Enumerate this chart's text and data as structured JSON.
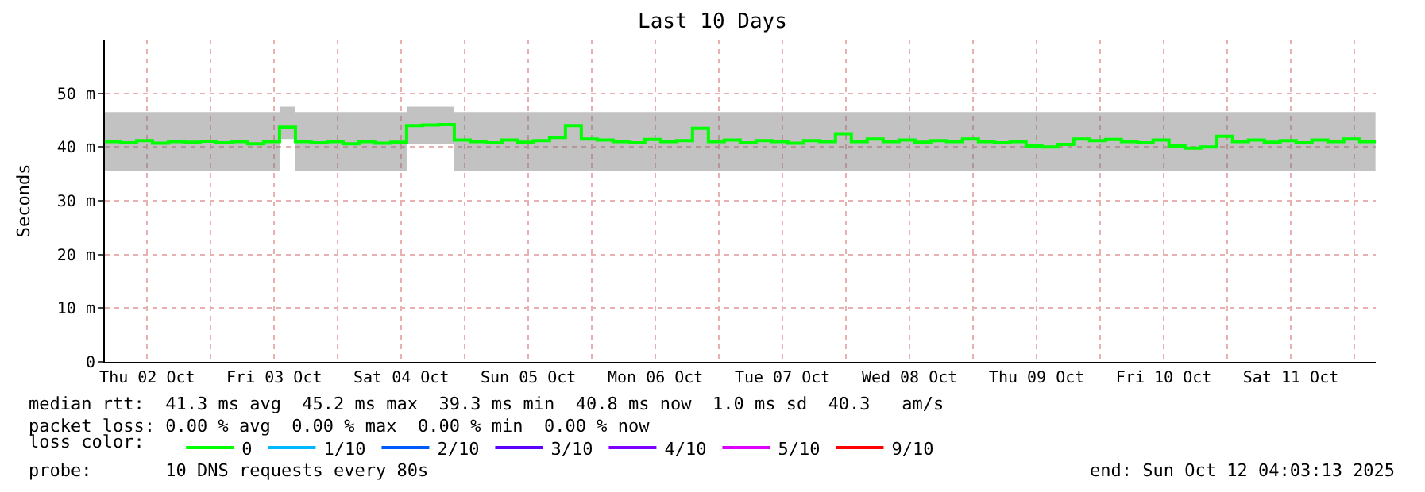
{
  "chart_data": {
    "type": "step",
    "title": "Last 10 Days",
    "ylabel": "Seconds",
    "legend_title": "loss color:",
    "x": [
      "2025-10-02T04:00",
      "2025-10-02T07:00",
      "2025-10-02T10:00",
      "2025-10-02T13:00",
      "2025-10-02T16:00",
      "2025-10-02T19:00",
      "2025-10-02T22:00",
      "2025-10-03T01:00",
      "2025-10-03T04:00",
      "2025-10-03T07:00",
      "2025-10-03T10:00",
      "2025-10-03T13:00",
      "2025-10-03T16:00",
      "2025-10-03T19:00",
      "2025-10-03T22:00",
      "2025-10-04T01:00",
      "2025-10-04T04:00",
      "2025-10-04T07:00",
      "2025-10-04T10:00",
      "2025-10-04T13:00",
      "2025-10-04T16:00",
      "2025-10-04T19:00",
      "2025-10-04T22:00",
      "2025-10-05T01:00",
      "2025-10-05T04:00",
      "2025-10-05T07:00",
      "2025-10-05T10:00",
      "2025-10-05T13:00",
      "2025-10-05T16:00",
      "2025-10-05T19:00",
      "2025-10-05T22:00",
      "2025-10-06T01:00",
      "2025-10-06T04:00",
      "2025-10-06T07:00",
      "2025-10-06T10:00",
      "2025-10-06T13:00",
      "2025-10-06T16:00",
      "2025-10-06T19:00",
      "2025-10-06T22:00",
      "2025-10-07T01:00",
      "2025-10-07T04:00",
      "2025-10-07T07:00",
      "2025-10-07T10:00",
      "2025-10-07T13:00",
      "2025-10-07T16:00",
      "2025-10-07T19:00",
      "2025-10-07T22:00",
      "2025-10-08T01:00",
      "2025-10-08T04:00",
      "2025-10-08T07:00",
      "2025-10-08T10:00",
      "2025-10-08T13:00",
      "2025-10-08T16:00",
      "2025-10-08T19:00",
      "2025-10-08T22:00",
      "2025-10-09T01:00",
      "2025-10-09T04:00",
      "2025-10-09T07:00",
      "2025-10-09T10:00",
      "2025-10-09T13:00",
      "2025-10-09T16:00",
      "2025-10-09T19:00",
      "2025-10-09T22:00",
      "2025-10-10T01:00",
      "2025-10-10T04:00",
      "2025-10-10T07:00",
      "2025-10-10T10:00",
      "2025-10-10T13:00",
      "2025-10-10T16:00",
      "2025-10-10T19:00",
      "2025-10-10T22:00",
      "2025-10-11T01:00",
      "2025-10-11T04:00",
      "2025-10-11T07:00",
      "2025-10-11T10:00",
      "2025-10-11T13:00",
      "2025-10-11T16:00",
      "2025-10-11T19:00",
      "2025-10-11T22:00",
      "2025-10-12T01:00",
      "2025-10-12T04:00"
    ],
    "series": [
      {
        "name": "0",
        "color": "#00ff00",
        "values": [
          41.0,
          40.8,
          41.2,
          40.7,
          41.0,
          40.9,
          41.1,
          40.8,
          41.0,
          40.6,
          41.0,
          43.7,
          41.0,
          40.8,
          41.0,
          40.6,
          41.0,
          40.7,
          40.9,
          44.0,
          44.1,
          44.2,
          41.3,
          41.0,
          40.8,
          41.3,
          40.9,
          41.2,
          41.8,
          44.0,
          41.5,
          41.3,
          41.0,
          40.8,
          41.4,
          41.0,
          41.2,
          43.5,
          41.0,
          41.3,
          40.8,
          41.2,
          41.0,
          40.7,
          41.2,
          41.0,
          42.5,
          41.0,
          41.5,
          41.0,
          41.3,
          40.9,
          41.2,
          41.0,
          41.5,
          41.0,
          40.8,
          41.0,
          40.2,
          40.0,
          40.5,
          41.5,
          41.2,
          41.4,
          41.0,
          40.8,
          41.3,
          40.2,
          39.8,
          40.0,
          42.0,
          41.0,
          41.3,
          40.9,
          41.2,
          40.8,
          41.3,
          41.0,
          41.5,
          41.0,
          41.3
        ],
        "lower": [
          35.5,
          35.5,
          35.5,
          35.5,
          35.5,
          35.5,
          35.5,
          35.5,
          35.5,
          35.5,
          35.5,
          41.5,
          35.5,
          35.5,
          35.5,
          35.5,
          35.5,
          35.5,
          35.5,
          40.5,
          40.5,
          40.5,
          35.5,
          35.5,
          35.5,
          35.5,
          35.5,
          35.5,
          35.5,
          35.5,
          35.5,
          35.5,
          35.5,
          35.5,
          35.5,
          35.5,
          35.5,
          35.5,
          35.5,
          35.5,
          35.5,
          35.5,
          35.5,
          35.5,
          35.5,
          35.5,
          35.5,
          35.5,
          35.5,
          35.5,
          35.5,
          35.5,
          35.5,
          35.5,
          35.5,
          35.5,
          35.5,
          35.5,
          35.5,
          35.5,
          35.5,
          35.5,
          35.5,
          35.5,
          35.5,
          35.5,
          35.5,
          35.5,
          35.5,
          35.5,
          35.5,
          35.5,
          35.5,
          35.5,
          35.5,
          35.5,
          35.5,
          35.5,
          35.5,
          35.5,
          35.5
        ],
        "upper": [
          46.5,
          46.5,
          46.5,
          46.5,
          46.5,
          46.5,
          46.5,
          46.5,
          46.5,
          46.5,
          46.5,
          47.5,
          46.5,
          46.5,
          46.5,
          46.5,
          46.5,
          46.5,
          46.5,
          47.5,
          47.5,
          47.5,
          46.5,
          46.5,
          46.5,
          46.5,
          46.5,
          46.5,
          46.5,
          46.5,
          46.5,
          46.5,
          46.5,
          46.5,
          46.5,
          46.5,
          46.5,
          46.5,
          46.5,
          46.5,
          46.5,
          46.5,
          46.5,
          46.5,
          46.5,
          46.5,
          46.5,
          46.5,
          46.5,
          46.5,
          46.5,
          46.5,
          46.5,
          46.5,
          46.5,
          46.5,
          46.5,
          46.5,
          46.5,
          46.5,
          46.5,
          46.5,
          46.5,
          46.5,
          46.5,
          46.5,
          46.5,
          46.5,
          46.5,
          46.5,
          46.5,
          46.5,
          46.5,
          46.5,
          46.5,
          46.5,
          46.5,
          46.5,
          46.5,
          46.5,
          46.5
        ]
      },
      {
        "name": "1/10",
        "color": "#00b8ff",
        "values": [
          null,
          null,
          null,
          null,
          null,
          null,
          null,
          null,
          null,
          null,
          null,
          null,
          null,
          null,
          null,
          null,
          null,
          null,
          null,
          null,
          null,
          null,
          null,
          null,
          null,
          null,
          null,
          null,
          null,
          null,
          null,
          null,
          null,
          null,
          null,
          null,
          null,
          null,
          null,
          null,
          null,
          null,
          null,
          null,
          null,
          null,
          null,
          null,
          null,
          null,
          null,
          null,
          null,
          null,
          null,
          null,
          null,
          null,
          null,
          null,
          null,
          null,
          null,
          null,
          null,
          null,
          null,
          null,
          null,
          null,
          null,
          null,
          null,
          null,
          null,
          null,
          null,
          null,
          null,
          null,
          null
        ]
      },
      {
        "name": "2/10",
        "color": "#0059ff",
        "values": [
          null,
          null,
          null,
          null,
          null,
          null,
          null,
          null,
          null,
          null,
          null,
          null,
          null,
          null,
          null,
          null,
          null,
          null,
          null,
          null,
          null,
          null,
          null,
          null,
          null,
          null,
          null,
          null,
          null,
          null,
          null,
          null,
          null,
          null,
          null,
          null,
          null,
          null,
          null,
          null,
          null,
          null,
          null,
          null,
          null,
          null,
          null,
          null,
          null,
          null,
          null,
          null,
          null,
          null,
          null,
          null,
          null,
          null,
          null,
          null,
          null,
          null,
          null,
          null,
          null,
          null,
          null,
          null,
          null,
          null,
          null,
          null,
          null,
          null,
          null,
          null,
          null,
          null,
          null,
          null,
          null
        ]
      },
      {
        "name": "3/10",
        "color": "#5e00ff",
        "values": [
          null,
          null,
          null,
          null,
          null,
          null,
          null,
          null,
          null,
          null,
          null,
          null,
          null,
          null,
          null,
          null,
          null,
          null,
          null,
          null,
          null,
          null,
          null,
          null,
          null,
          null,
          null,
          null,
          null,
          null,
          null,
          null,
          null,
          null,
          null,
          null,
          null,
          null,
          null,
          null,
          null,
          null,
          null,
          null,
          null,
          null,
          null,
          null,
          null,
          null,
          null,
          null,
          null,
          null,
          null,
          null,
          null,
          null,
          null,
          null,
          null,
          null,
          null,
          null,
          null,
          null,
          null,
          null,
          null,
          null,
          null,
          null,
          null,
          null,
          null,
          null,
          null,
          null,
          null,
          null,
          null
        ]
      },
      {
        "name": "4/10",
        "color": "#7e00ff",
        "values": [
          null,
          null,
          null,
          null,
          null,
          null,
          null,
          null,
          null,
          null,
          null,
          null,
          null,
          null,
          null,
          null,
          null,
          null,
          null,
          null,
          null,
          null,
          null,
          null,
          null,
          null,
          null,
          null,
          null,
          null,
          null,
          null,
          null,
          null,
          null,
          null,
          null,
          null,
          null,
          null,
          null,
          null,
          null,
          null,
          null,
          null,
          null,
          null,
          null,
          null,
          null,
          null,
          null,
          null,
          null,
          null,
          null,
          null,
          null,
          null,
          null,
          null,
          null,
          null,
          null,
          null,
          null,
          null,
          null,
          null,
          null,
          null,
          null,
          null,
          null,
          null,
          null,
          null,
          null,
          null,
          null
        ]
      },
      {
        "name": "5/10",
        "color": "#dd00ff",
        "values": [
          null,
          null,
          null,
          null,
          null,
          null,
          null,
          null,
          null,
          null,
          null,
          null,
          null,
          null,
          null,
          null,
          null,
          null,
          null,
          null,
          null,
          null,
          null,
          null,
          null,
          null,
          null,
          null,
          null,
          null,
          null,
          null,
          null,
          null,
          null,
          null,
          null,
          null,
          null,
          null,
          null,
          null,
          null,
          null,
          null,
          null,
          null,
          null,
          null,
          null,
          null,
          null,
          null,
          null,
          null,
          null,
          null,
          null,
          null,
          null,
          null,
          null,
          null,
          null,
          null,
          null,
          null,
          null,
          null,
          null,
          null,
          null,
          null,
          null,
          null,
          null,
          null,
          null,
          null,
          null,
          null
        ]
      },
      {
        "name": "9/10",
        "color": "#ff0000",
        "values": [
          null,
          null,
          null,
          null,
          null,
          null,
          null,
          null,
          null,
          null,
          null,
          null,
          null,
          null,
          null,
          null,
          null,
          null,
          null,
          null,
          null,
          null,
          null,
          null,
          null,
          null,
          null,
          null,
          null,
          null,
          null,
          null,
          null,
          null,
          null,
          null,
          null,
          null,
          null,
          null,
          null,
          null,
          null,
          null,
          null,
          null,
          null,
          null,
          null,
          null,
          null,
          null,
          null,
          null,
          null,
          null,
          null,
          null,
          null,
          null,
          null,
          null,
          null,
          null,
          null,
          null,
          null,
          null,
          null,
          null,
          null,
          null,
          null,
          null,
          null,
          null,
          null,
          null,
          null,
          null,
          null
        ]
      }
    ],
    "xlim": [
      "2025-10-02T04:00",
      "2025-10-12T04:03"
    ],
    "xticks": [
      {
        "value": "2025-10-02T12:00",
        "label": "Thu 02 Oct"
      },
      {
        "value": "2025-10-03T00:00",
        "label": null
      },
      {
        "value": "2025-10-03T12:00",
        "label": "Fri 03 Oct"
      },
      {
        "value": "2025-10-04T00:00",
        "label": null
      },
      {
        "value": "2025-10-04T12:00",
        "label": "Sat 04 Oct"
      },
      {
        "value": "2025-10-05T00:00",
        "label": null
      },
      {
        "value": "2025-10-05T12:00",
        "label": "Sun 05 Oct"
      },
      {
        "value": "2025-10-06T00:00",
        "label": null
      },
      {
        "value": "2025-10-06T12:00",
        "label": "Mon 06 Oct"
      },
      {
        "value": "2025-10-07T00:00",
        "label": null
      },
      {
        "value": "2025-10-07T12:00",
        "label": "Tue 07 Oct"
      },
      {
        "value": "2025-10-08T00:00",
        "label": null
      },
      {
        "value": "2025-10-08T12:00",
        "label": "Wed 08 Oct"
      },
      {
        "value": "2025-10-09T00:00",
        "label": null
      },
      {
        "value": "2025-10-09T12:00",
        "label": "Thu 09 Oct"
      },
      {
        "value": "2025-10-10T00:00",
        "label": null
      },
      {
        "value": "2025-10-10T12:00",
        "label": "Fri 10 Oct"
      },
      {
        "value": "2025-10-11T00:00",
        "label": null
      },
      {
        "value": "2025-10-11T12:00",
        "label": "Sat 11 Oct"
      },
      {
        "value": "2025-10-12T00:00",
        "label": null
      }
    ],
    "ylim": [
      0,
      60
    ],
    "yticks": [
      0,
      {
        "value": 10,
        "label": "10 m"
      },
      {
        "value": 20,
        "label": "20 m"
      },
      {
        "value": 30,
        "label": "30 m"
      },
      {
        "value": 40,
        "label": "40 m"
      },
      {
        "value": 50,
        "label": "50 m"
      }
    ],
    "grid": true,
    "legend": "bottom",
    "annotations": [
      "median rtt:  41.3 ms avg  45.2 ms max  39.3 ms min  40.8 ms now  1.0 ms sd  40.3   am/s",
      "packet loss: 0.00 % avg  0.00 % max  0.00 % min  0.00 % now",
      "probe:       10 DNS requests every 80s",
      "end: Sun Oct 12 04:03:13 2025"
    ]
  }
}
